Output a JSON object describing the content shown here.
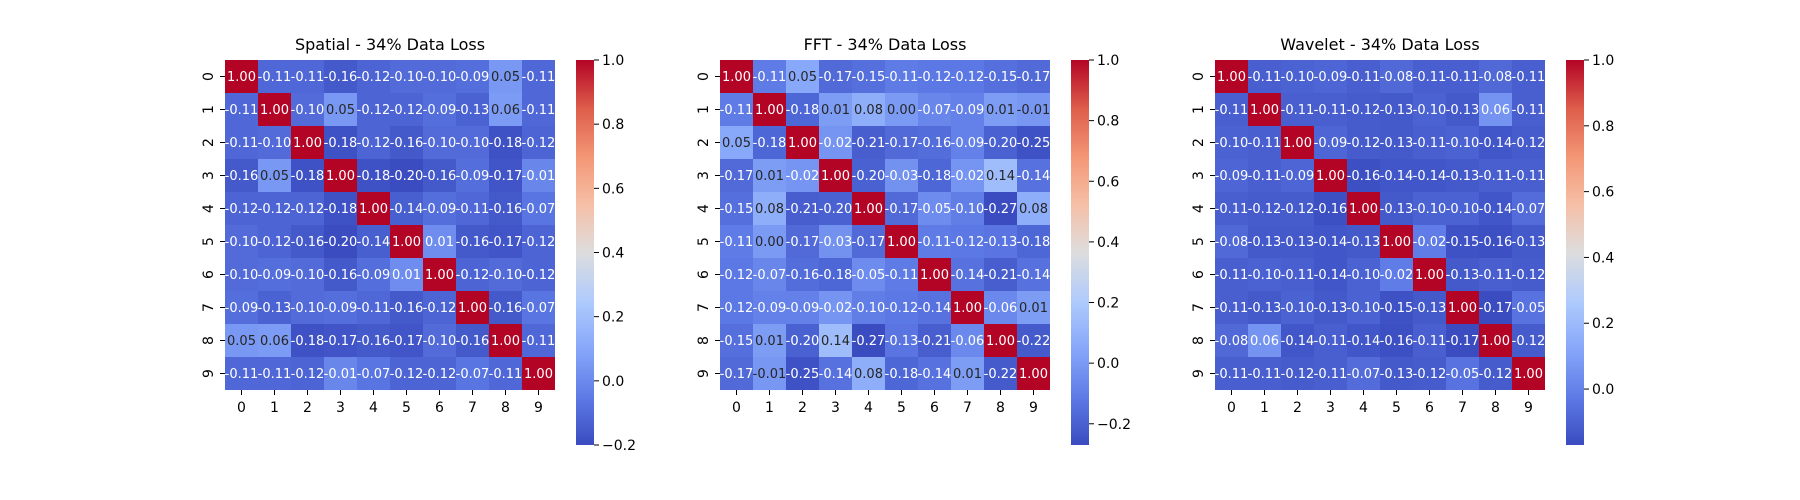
{
  "chart_data": [
    {
      "type": "heatmap",
      "title": "Spatial - 34% Data Loss",
      "x_categories": [
        "0",
        "1",
        "2",
        "3",
        "4",
        "5",
        "6",
        "7",
        "8",
        "9"
      ],
      "y_categories": [
        "0",
        "1",
        "2",
        "3",
        "4",
        "5",
        "6",
        "7",
        "8",
        "9"
      ],
      "colorscale": "coolwarm",
      "vmin": -0.2,
      "vmax": 1.0,
      "colorbar_ticks": [
        -0.2,
        0.0,
        0.2,
        0.4,
        0.6,
        0.8,
        1.0
      ],
      "colorbar_tick_labels": [
        "−0.2",
        "0.0",
        "0.2",
        "0.4",
        "0.6",
        "0.8",
        "1.0"
      ],
      "values": [
        [
          1.0,
          -0.11,
          -0.11,
          -0.16,
          -0.12,
          -0.1,
          -0.1,
          -0.09,
          0.05,
          -0.11
        ],
        [
          -0.11,
          1.0,
          -0.1,
          0.05,
          -0.12,
          -0.12,
          -0.09,
          -0.13,
          0.06,
          -0.11
        ],
        [
          -0.11,
          -0.1,
          1.0,
          -0.18,
          -0.12,
          -0.16,
          -0.1,
          -0.1,
          -0.18,
          -0.12
        ],
        [
          -0.16,
          0.05,
          -0.18,
          1.0,
          -0.18,
          -0.2,
          -0.16,
          -0.09,
          -0.17,
          -0.01
        ],
        [
          -0.12,
          -0.12,
          -0.12,
          -0.18,
          1.0,
          -0.14,
          -0.09,
          -0.11,
          -0.16,
          -0.07
        ],
        [
          -0.1,
          -0.12,
          -0.16,
          -0.2,
          -0.14,
          1.0,
          0.01,
          -0.16,
          -0.17,
          -0.12
        ],
        [
          -0.1,
          -0.09,
          -0.1,
          -0.16,
          -0.09,
          0.01,
          1.0,
          -0.12,
          -0.1,
          -0.12
        ],
        [
          -0.09,
          -0.13,
          -0.1,
          -0.09,
          -0.11,
          -0.16,
          -0.12,
          1.0,
          -0.16,
          -0.07
        ],
        [
          0.05,
          0.06,
          -0.18,
          -0.17,
          -0.16,
          -0.17,
          -0.1,
          -0.16,
          1.0,
          -0.11
        ],
        [
          -0.11,
          -0.11,
          -0.12,
          -0.01,
          -0.07,
          -0.12,
          -0.12,
          -0.07,
          -0.11,
          1.0
        ]
      ]
    },
    {
      "type": "heatmap",
      "title": "FFT - 34% Data Loss",
      "x_categories": [
        "0",
        "1",
        "2",
        "3",
        "4",
        "5",
        "6",
        "7",
        "8",
        "9"
      ],
      "y_categories": [
        "0",
        "1",
        "2",
        "3",
        "4",
        "5",
        "6",
        "7",
        "8",
        "9"
      ],
      "colorscale": "coolwarm",
      "vmin": -0.27,
      "vmax": 1.0,
      "colorbar_ticks": [
        -0.2,
        0.0,
        0.2,
        0.4,
        0.6,
        0.8,
        1.0
      ],
      "colorbar_tick_labels": [
        "−0.2",
        "0.0",
        "0.2",
        "0.4",
        "0.6",
        "0.8",
        "1.0"
      ],
      "values": [
        [
          1.0,
          -0.11,
          0.05,
          -0.17,
          -0.15,
          -0.11,
          -0.12,
          -0.12,
          -0.15,
          -0.17
        ],
        [
          -0.11,
          1.0,
          -0.18,
          0.01,
          0.08,
          0.0,
          -0.07,
          -0.09,
          0.01,
          -0.01
        ],
        [
          0.05,
          -0.18,
          1.0,
          -0.02,
          -0.21,
          -0.17,
          -0.16,
          -0.09,
          -0.2,
          -0.25
        ],
        [
          -0.17,
          0.01,
          -0.02,
          1.0,
          -0.2,
          -0.03,
          -0.18,
          -0.02,
          0.14,
          -0.14
        ],
        [
          -0.15,
          0.08,
          -0.21,
          -0.2,
          1.0,
          -0.17,
          -0.05,
          -0.1,
          -0.27,
          0.08
        ],
        [
          -0.11,
          0.0,
          -0.17,
          -0.03,
          -0.17,
          1.0,
          -0.11,
          -0.12,
          -0.13,
          -0.18
        ],
        [
          -0.12,
          -0.07,
          -0.16,
          -0.18,
          -0.05,
          -0.11,
          1.0,
          -0.14,
          -0.21,
          -0.14
        ],
        [
          -0.12,
          -0.09,
          -0.09,
          -0.02,
          -0.1,
          -0.12,
          -0.14,
          1.0,
          -0.06,
          0.01
        ],
        [
          -0.15,
          0.01,
          -0.2,
          0.14,
          -0.27,
          -0.13,
          -0.21,
          -0.06,
          1.0,
          -0.22
        ],
        [
          -0.17,
          -0.01,
          -0.25,
          -0.14,
          0.08,
          -0.18,
          -0.14,
          0.01,
          -0.22,
          1.0
        ]
      ]
    },
    {
      "type": "heatmap",
      "title": "Wavelet - 34% Data Loss",
      "x_categories": [
        "0",
        "1",
        "2",
        "3",
        "4",
        "5",
        "6",
        "7",
        "8",
        "9"
      ],
      "y_categories": [
        "0",
        "1",
        "2",
        "3",
        "4",
        "5",
        "6",
        "7",
        "8",
        "9"
      ],
      "colorscale": "coolwarm",
      "vmin": -0.17,
      "vmax": 1.0,
      "colorbar_ticks": [
        0.0,
        0.2,
        0.4,
        0.6,
        0.8,
        1.0
      ],
      "colorbar_tick_labels": [
        "0.0",
        "0.2",
        "0.4",
        "0.6",
        "0.8",
        "1.0"
      ],
      "values": [
        [
          1.0,
          -0.11,
          -0.1,
          -0.09,
          -0.11,
          -0.08,
          -0.11,
          -0.11,
          -0.08,
          -0.11
        ],
        [
          -0.11,
          1.0,
          -0.11,
          -0.11,
          -0.12,
          -0.13,
          -0.1,
          -0.13,
          0.06,
          -0.11
        ],
        [
          -0.1,
          -0.11,
          1.0,
          -0.09,
          -0.12,
          -0.13,
          -0.11,
          -0.1,
          -0.14,
          -0.12
        ],
        [
          -0.09,
          -0.11,
          -0.09,
          1.0,
          -0.16,
          -0.14,
          -0.14,
          -0.13,
          -0.11,
          -0.11
        ],
        [
          -0.11,
          -0.12,
          -0.12,
          -0.16,
          1.0,
          -0.13,
          -0.1,
          -0.1,
          -0.14,
          -0.07
        ],
        [
          -0.08,
          -0.13,
          -0.13,
          -0.14,
          -0.13,
          1.0,
          -0.02,
          -0.15,
          -0.16,
          -0.13
        ],
        [
          -0.11,
          -0.1,
          -0.11,
          -0.14,
          -0.1,
          -0.02,
          1.0,
          -0.13,
          -0.11,
          -0.12
        ],
        [
          -0.11,
          -0.13,
          -0.1,
          -0.13,
          -0.1,
          -0.15,
          -0.13,
          1.0,
          -0.17,
          -0.05
        ],
        [
          -0.08,
          0.06,
          -0.14,
          -0.11,
          -0.14,
          -0.16,
          -0.11,
          -0.17,
          1.0,
          -0.12
        ],
        [
          -0.11,
          -0.11,
          -0.12,
          -0.11,
          -0.07,
          -0.13,
          -0.12,
          -0.05,
          -0.12,
          1.0
        ]
      ]
    }
  ]
}
